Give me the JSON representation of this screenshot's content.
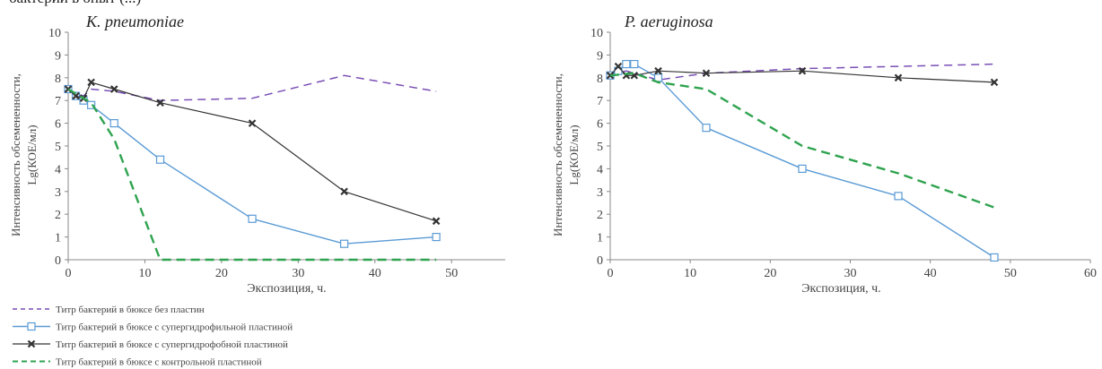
{
  "caption_fragment": "бактерий в опыт (...)",
  "colors": {
    "no_plate": "#7a4fb5",
    "superhydrophilic": "#5b9bd5",
    "superhydrophobic": "#333333",
    "control": "#2fa34f",
    "axis": "#888888"
  },
  "legend": [
    {
      "label": "Титр бактерий в бюксе без пластин"
    },
    {
      "label": "Титр бактерий в бюксе с супергидрофильной пластиной"
    },
    {
      "label": "Титр бактерий в бюксе с супергидрофобной пластиной"
    },
    {
      "label": "Титр бактерий в бюксе с контрольной пластиной"
    }
  ],
  "chart_data": [
    {
      "type": "line",
      "title": "K. pneumoniae",
      "xlabel": "Экспозиция, ч.",
      "ylabel_line1": "Интенсивность обсемененности,",
      "ylabel_line2": "Lg(КОЕ/мл)",
      "xlim": [
        0,
        57
      ],
      "ylim": [
        0,
        10
      ],
      "xticks": [
        0,
        10,
        20,
        30,
        40,
        50
      ],
      "yticks": [
        0,
        1,
        2,
        3,
        4,
        5,
        6,
        7,
        8,
        9,
        10
      ],
      "series": [
        {
          "name": "Титр бактерий в бюксе без пластин",
          "style": "no_plate",
          "x": [
            0,
            1,
            2,
            3,
            6,
            12,
            24,
            36,
            48
          ],
          "y": [
            7.5,
            7.3,
            7.2,
            7.5,
            7.4,
            7.0,
            7.1,
            8.1,
            7.4
          ]
        },
        {
          "name": "Титр бактерий в бюксе с супергидрофильной пластиной",
          "style": "superhydrophilic",
          "x": [
            0,
            1,
            2,
            3,
            6,
            12,
            24,
            36,
            48
          ],
          "y": [
            7.5,
            7.2,
            7.0,
            6.8,
            6.0,
            4.4,
            1.8,
            0.7,
            1.0
          ]
        },
        {
          "name": "Титр бактерий в бюксе с супергидрофобной пластиной",
          "style": "superhydrophobic",
          "x": [
            0,
            1,
            2,
            3,
            6,
            12,
            24,
            36,
            48
          ],
          "y": [
            7.5,
            7.2,
            7.1,
            7.8,
            7.5,
            6.9,
            6.0,
            3.0,
            1.7
          ]
        },
        {
          "name": "Титр бактерий в бюксе с контрольной пластиной",
          "style": "control",
          "x": [
            0,
            3,
            6,
            12,
            24,
            36,
            48
          ],
          "y": [
            7.5,
            6.9,
            5.3,
            0.0,
            0.0,
            0.0,
            0.0
          ]
        }
      ]
    },
    {
      "type": "line",
      "title": "P. aeruginosa",
      "xlabel": "Экспозиция, ч.",
      "ylabel_line1": "Интенсивность обсемененности,",
      "ylabel_line2": "Lg(КОЕ/мл)",
      "xlim": [
        0,
        60
      ],
      "ylim": [
        0,
        10
      ],
      "xticks": [
        0,
        10,
        20,
        30,
        40,
        50,
        60
      ],
      "yticks": [
        0,
        1,
        2,
        3,
        4,
        5,
        6,
        7,
        8,
        9,
        10
      ],
      "series": [
        {
          "name": "Титр бактерий в бюксе без пластин",
          "style": "no_plate",
          "x": [
            0,
            1,
            2,
            3,
            6,
            12,
            24,
            36,
            48
          ],
          "y": [
            8.1,
            8.2,
            8.3,
            8.2,
            7.9,
            8.2,
            8.4,
            8.5,
            8.6
          ]
        },
        {
          "name": "Титр бактерий в бюксе с супергидрофильной пластиной",
          "style": "superhydrophilic",
          "x": [
            0,
            1,
            2,
            3,
            6,
            12,
            24,
            36,
            48
          ],
          "y": [
            8.1,
            8.3,
            8.6,
            8.6,
            8.0,
            5.8,
            4.0,
            2.8,
            0.1
          ]
        },
        {
          "name": "Титр бактерий в бюксе с супергидрофобной пластиной",
          "style": "superhydrophobic",
          "x": [
            0,
            1,
            2,
            3,
            6,
            12,
            24,
            36,
            48
          ],
          "y": [
            8.1,
            8.5,
            8.1,
            8.1,
            8.3,
            8.2,
            8.3,
            8.0,
            7.8
          ]
        },
        {
          "name": "Титр бактерий в бюксе с контрольной пластиной",
          "style": "control",
          "x": [
            0,
            3,
            6,
            12,
            24,
            36,
            48
          ],
          "y": [
            8.1,
            8.2,
            7.8,
            7.5,
            5.0,
            3.8,
            2.3
          ]
        }
      ]
    }
  ]
}
